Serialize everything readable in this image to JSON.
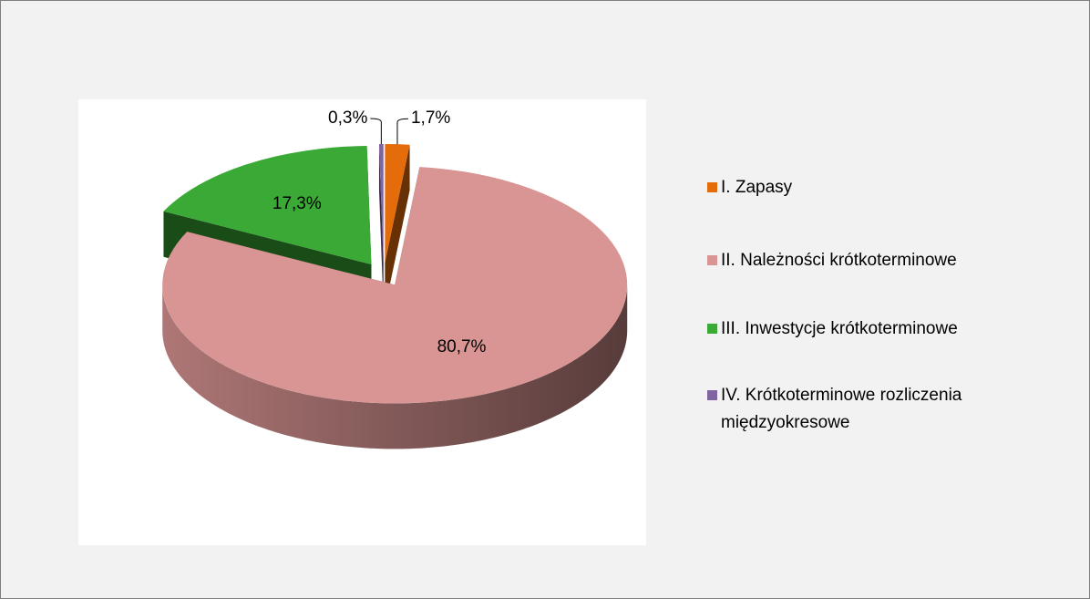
{
  "chart_data": {
    "type": "pie",
    "categories": [
      "I. Zapasy",
      "II. Należności krótkoterminowe",
      "III. Inwestycje krótkoterminowe",
      "IV. Krótkoterminowe rozliczenia międzyokresowe"
    ],
    "values": [
      1.7,
      80.7,
      17.3,
      0.3
    ],
    "value_labels": [
      "1,7%",
      "80,7%",
      "17,3%",
      "0,3%"
    ],
    "colors": [
      "#e46c0a",
      "#d99594",
      "#3aa935",
      "#8064a2"
    ],
    "legend": "right"
  }
}
